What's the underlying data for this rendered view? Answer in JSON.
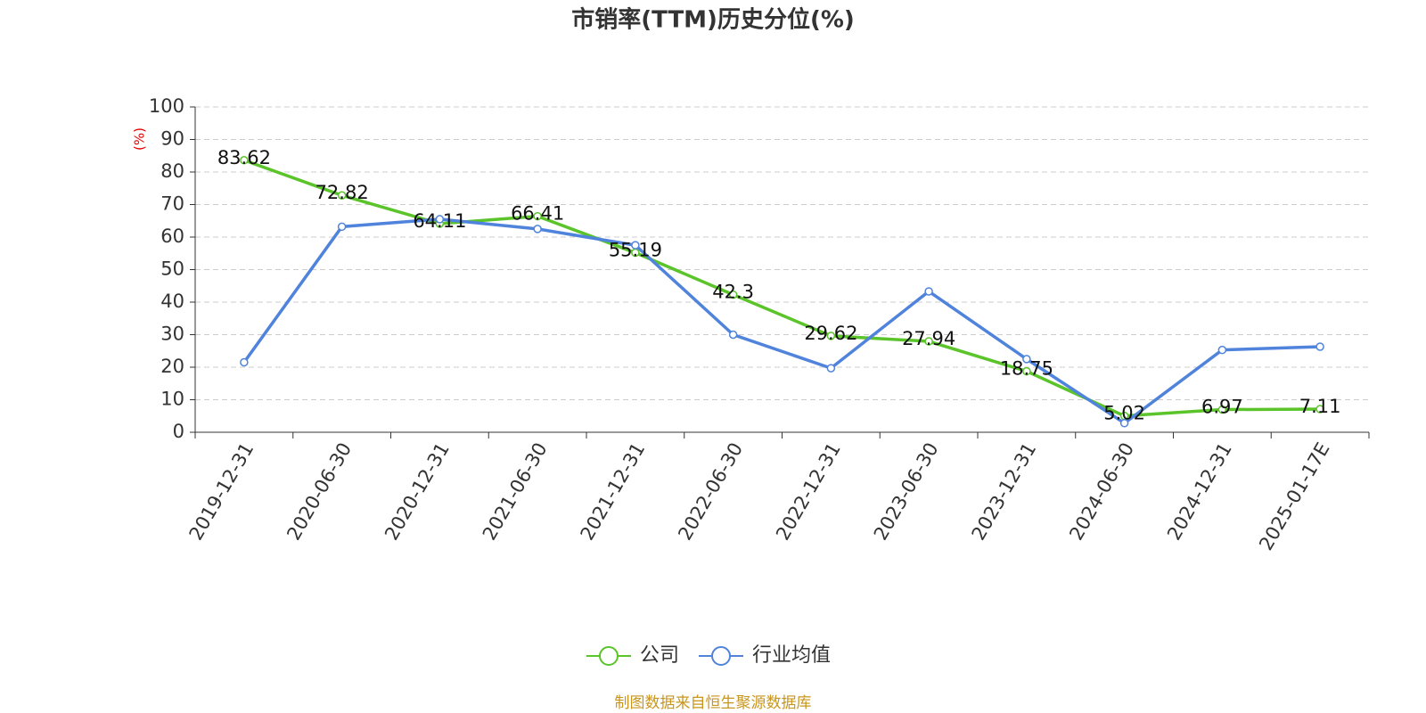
{
  "chart_data": {
    "type": "line",
    "title": "市销率(TTM)历史分位(%)",
    "y_label": "(%)",
    "footer": "制图数据来自恒生聚源数据库",
    "categories": [
      "2019-12-31",
      "2020-06-30",
      "2020-12-31",
      "2021-06-30",
      "2021-12-31",
      "2022-06-30",
      "2022-12-31",
      "2023-06-30",
      "2023-12-31",
      "2024-06-30",
      "2024-12-31",
      "2025-01-17E"
    ],
    "series": [
      {
        "name": "公司",
        "color": "#5ac42a",
        "data_labels": true,
        "values": [
          83.62,
          72.82,
          64.11,
          66.41,
          55.19,
          42.3,
          29.62,
          27.94,
          18.75,
          5.02,
          6.97,
          7.11
        ]
      },
      {
        "name": "行业均值",
        "color": "#4f83dc",
        "data_labels": false,
        "values": [
          21.5,
          63.2,
          65.5,
          62.5,
          57.5,
          30,
          19.7,
          43.3,
          22.5,
          2.8,
          25.3,
          26.3
        ]
      }
    ],
    "ylim": [
      0,
      100
    ],
    "yticks": [
      0,
      10,
      20,
      30,
      40,
      50,
      60,
      70,
      80,
      90,
      100
    ],
    "grid": true,
    "legend": "bottom"
  }
}
